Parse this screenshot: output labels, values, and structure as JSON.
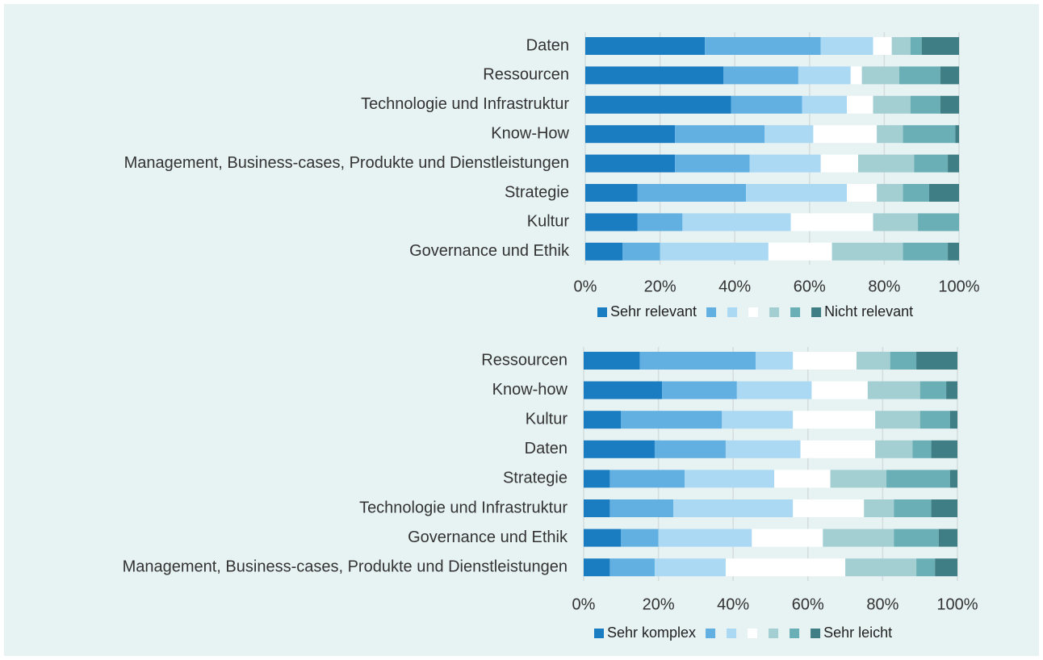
{
  "chart_data": [
    {
      "type": "bar",
      "orientation": "horizontal",
      "stacked": true,
      "categories": [
        "Daten",
        "Ressourcen",
        "Technologie und Infrastruktur",
        "Know-How",
        "Management, Business-cases, Produkte und Dienstleistungen",
        "Strategie",
        "Kultur",
        "Governance und Ethik"
      ],
      "series": [
        {
          "name": "Sehr relevant",
          "color": "#1a7cc1",
          "values": [
            32,
            37,
            39,
            24,
            24,
            14,
            14,
            10
          ]
        },
        {
          "color": "#62b0e2",
          "values": [
            31,
            20,
            19,
            24,
            20,
            29,
            12,
            10
          ]
        },
        {
          "color": "#abd9f3",
          "values": [
            14,
            14,
            12,
            13,
            19,
            27,
            29,
            29
          ]
        },
        {
          "color": "#ffffff",
          "values": [
            5,
            3,
            7,
            17,
            10,
            8,
            22,
            17
          ]
        },
        {
          "color": "#a3cfd3",
          "values": [
            5,
            10,
            10,
            7,
            15,
            7,
            12,
            19
          ]
        },
        {
          "color": "#6aafb6",
          "values": [
            3,
            11,
            8,
            14,
            9,
            7,
            11,
            12
          ]
        },
        {
          "name": "Nicht relevant",
          "color": "#3f7e84",
          "values": [
            10,
            5,
            5,
            1,
            3,
            8,
            0,
            3
          ]
        }
      ],
      "xlim": [
        0,
        100
      ],
      "xticks": [
        {
          "value": 0,
          "label": "0%"
        },
        {
          "value": 20,
          "label": "20%"
        },
        {
          "value": 40,
          "label": "40%"
        },
        {
          "value": 60,
          "label": "60%"
        },
        {
          "value": 80,
          "label": "80%"
        },
        {
          "value": 100,
          "label": "100%"
        }
      ],
      "grid": true,
      "legend": "bottom"
    },
    {
      "type": "bar",
      "orientation": "horizontal",
      "stacked": true,
      "categories": [
        "Ressourcen",
        "Know-how",
        "Kultur",
        "Daten",
        "Strategie",
        "Technologie und Infrastruktur",
        "Governance und Ethik",
        "Management, Business-cases, Produkte und Dienstleistungen"
      ],
      "series": [
        {
          "name": "Sehr komplex",
          "color": "#1a7cc1",
          "values": [
            15,
            21,
            10,
            19,
            7,
            7,
            10,
            7
          ]
        },
        {
          "color": "#62b0e2",
          "values": [
            31,
            20,
            27,
            19,
            20,
            17,
            10,
            12
          ]
        },
        {
          "color": "#abd9f3",
          "values": [
            10,
            20,
            19,
            20,
            24,
            32,
            25,
            19
          ]
        },
        {
          "color": "#ffffff",
          "values": [
            17,
            15,
            22,
            20,
            15,
            19,
            19,
            32
          ]
        },
        {
          "color": "#a3cfd3",
          "values": [
            9,
            14,
            12,
            10,
            15,
            8,
            19,
            19
          ]
        },
        {
          "color": "#6aafb6",
          "values": [
            7,
            7,
            8,
            5,
            17,
            10,
            12,
            5
          ]
        },
        {
          "name": "Sehr leicht",
          "color": "#3f7e84",
          "values": [
            11,
            3,
            2,
            7,
            2,
            7,
            5,
            6
          ]
        }
      ],
      "xlim": [
        0,
        100
      ],
      "xticks": [
        {
          "value": 0,
          "label": "0%"
        },
        {
          "value": 20,
          "label": "20%"
        },
        {
          "value": 40,
          "label": "40%"
        },
        {
          "value": 60,
          "label": "60%"
        },
        {
          "value": 80,
          "label": "80%"
        },
        {
          "value": 100,
          "label": "100%"
        }
      ],
      "grid": true,
      "legend": "bottom"
    }
  ]
}
